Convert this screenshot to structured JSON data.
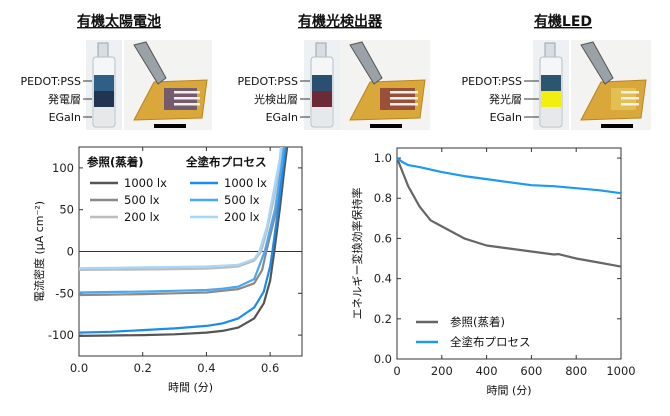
{
  "panels": [
    {
      "title": "有機太陽電池",
      "labels": [
        "PEDOT:PSS",
        "発電層",
        "EGaIn"
      ],
      "layer_colors": [
        "#2f5f86",
        "#1f3550",
        "#e6e8ea"
      ]
    },
    {
      "title": "有機光検出器",
      "labels": [
        "PEDOT:PSS",
        "光検出層",
        "EGaIn"
      ],
      "layer_colors": [
        "#2b4f70",
        "#6b2a35",
        "#e6e8ea"
      ]
    },
    {
      "title": "有機LED",
      "labels": [
        "PEDOT:PSS",
        "発光層",
        "EGaIn"
      ],
      "layer_colors": [
        "#2c5570",
        "#f2ee10",
        "#e6e8ea"
      ]
    }
  ],
  "chart_data": [
    {
      "type": "line",
      "xlabel": "時間 (分)",
      "ylabel": "電流密度 (μA cm⁻²)",
      "xlim": [
        0,
        0.7
      ],
      "ylim": [
        -125,
        125
      ],
      "xticks": [
        "0.0",
        "0.2",
        "0.4",
        "0.6"
      ],
      "xtick_values": [
        0,
        0.2,
        0.4,
        0.6
      ],
      "yticks": [
        "100",
        "50",
        "0",
        "-50",
        "-100"
      ],
      "ytick_values": [
        100,
        50,
        0,
        -50,
        -100
      ],
      "zero_line": true,
      "legend": {
        "group_titles": [
          "参照(蒸着)",
          "全塗布プロセス"
        ],
        "placement": "top-left"
      },
      "series": [
        {
          "name": "1000 lx",
          "group": 0,
          "color": "#555555",
          "x": [
            0,
            0.1,
            0.2,
            0.3,
            0.4,
            0.45,
            0.5,
            0.55,
            0.58,
            0.6,
            0.613,
            0.63,
            0.645,
            0.655
          ],
          "y": [
            -101,
            -100.5,
            -100,
            -99,
            -97,
            -95,
            -91,
            -80,
            -62,
            -35,
            0,
            50,
            100,
            130
          ]
        },
        {
          "name": "500 lx",
          "group": 0,
          "color": "#8a8a8a",
          "x": [
            0,
            0.1,
            0.2,
            0.3,
            0.4,
            0.45,
            0.5,
            0.55,
            0.575,
            0.588,
            0.62,
            0.64,
            0.65
          ],
          "y": [
            -52,
            -51.5,
            -51,
            -50,
            -49,
            -47,
            -45,
            -38,
            -22,
            0,
            50,
            100,
            130
          ]
        },
        {
          "name": "200 lx",
          "group": 0,
          "color": "#bdbdbd",
          "x": [
            0,
            0.1,
            0.2,
            0.3,
            0.4,
            0.45,
            0.5,
            0.55,
            0.572,
            0.59,
            0.61,
            0.63,
            0.64
          ],
          "y": [
            -22,
            -21.8,
            -21.5,
            -21,
            -20.5,
            -19.5,
            -18,
            -11,
            0,
            25,
            60,
            100,
            130
          ]
        },
        {
          "name": "1000 lx",
          "group": 1,
          "color": "#1a8cf0",
          "x": [
            0,
            0.1,
            0.2,
            0.3,
            0.4,
            0.45,
            0.5,
            0.55,
            0.58,
            0.6,
            0.607,
            0.625,
            0.64,
            0.65
          ],
          "y": [
            -97,
            -96,
            -94,
            -92,
            -89,
            -86,
            -80,
            -67,
            -48,
            -18,
            0,
            50,
            100,
            130
          ]
        },
        {
          "name": "500 lx",
          "group": 1,
          "color": "#4aa8f2",
          "x": [
            0,
            0.1,
            0.2,
            0.3,
            0.4,
            0.45,
            0.5,
            0.55,
            0.583,
            0.615,
            0.635,
            0.645
          ],
          "y": [
            -49,
            -48.5,
            -48,
            -47,
            -46,
            -44.5,
            -42,
            -33,
            0,
            50,
            100,
            130
          ]
        },
        {
          "name": "200 lx",
          "group": 1,
          "color": "#a8d6f8",
          "x": [
            0,
            0.1,
            0.2,
            0.3,
            0.4,
            0.45,
            0.5,
            0.55,
            0.566,
            0.59,
            0.61,
            0.63,
            0.635
          ],
          "y": [
            -20,
            -19.5,
            -19,
            -18.5,
            -18,
            -17,
            -16,
            -9,
            0,
            30,
            70,
            110,
            130
          ]
        }
      ]
    },
    {
      "type": "line",
      "xlabel": "時間 (分)",
      "ylabel": "エネルギー変換効率保持率",
      "xlim": [
        0,
        1000
      ],
      "ylim": [
        0,
        1.05
      ],
      "xticks": [
        "0",
        "200",
        "400",
        "600",
        "800",
        "1000"
      ],
      "xtick_values": [
        0,
        200,
        400,
        600,
        800,
        1000
      ],
      "yticks": [
        "1.0",
        "0.8",
        "0.6",
        "0.4",
        "0.2",
        "0.0"
      ],
      "ytick_values": [
        1.0,
        0.8,
        0.6,
        0.4,
        0.2,
        0.0
      ],
      "legend": {
        "placement": "bottom-left"
      },
      "series": [
        {
          "name": "参照(蒸着)",
          "color": "#666666",
          "x": [
            0,
            25,
            50,
            100,
            150,
            200,
            300,
            400,
            500,
            600,
            700,
            720,
            800,
            900,
            1000
          ],
          "y": [
            1.0,
            0.93,
            0.86,
            0.76,
            0.69,
            0.66,
            0.6,
            0.565,
            0.55,
            0.535,
            0.52,
            0.522,
            0.5,
            0.48,
            0.46
          ]
        },
        {
          "name": "全塗布プロセス",
          "color": "#1a9af5",
          "x": [
            0,
            25,
            50,
            100,
            200,
            300,
            400,
            500,
            600,
            700,
            800,
            900,
            1000
          ],
          "y": [
            1.0,
            0.98,
            0.965,
            0.955,
            0.93,
            0.91,
            0.895,
            0.88,
            0.865,
            0.86,
            0.85,
            0.84,
            0.825
          ]
        }
      ]
    }
  ]
}
